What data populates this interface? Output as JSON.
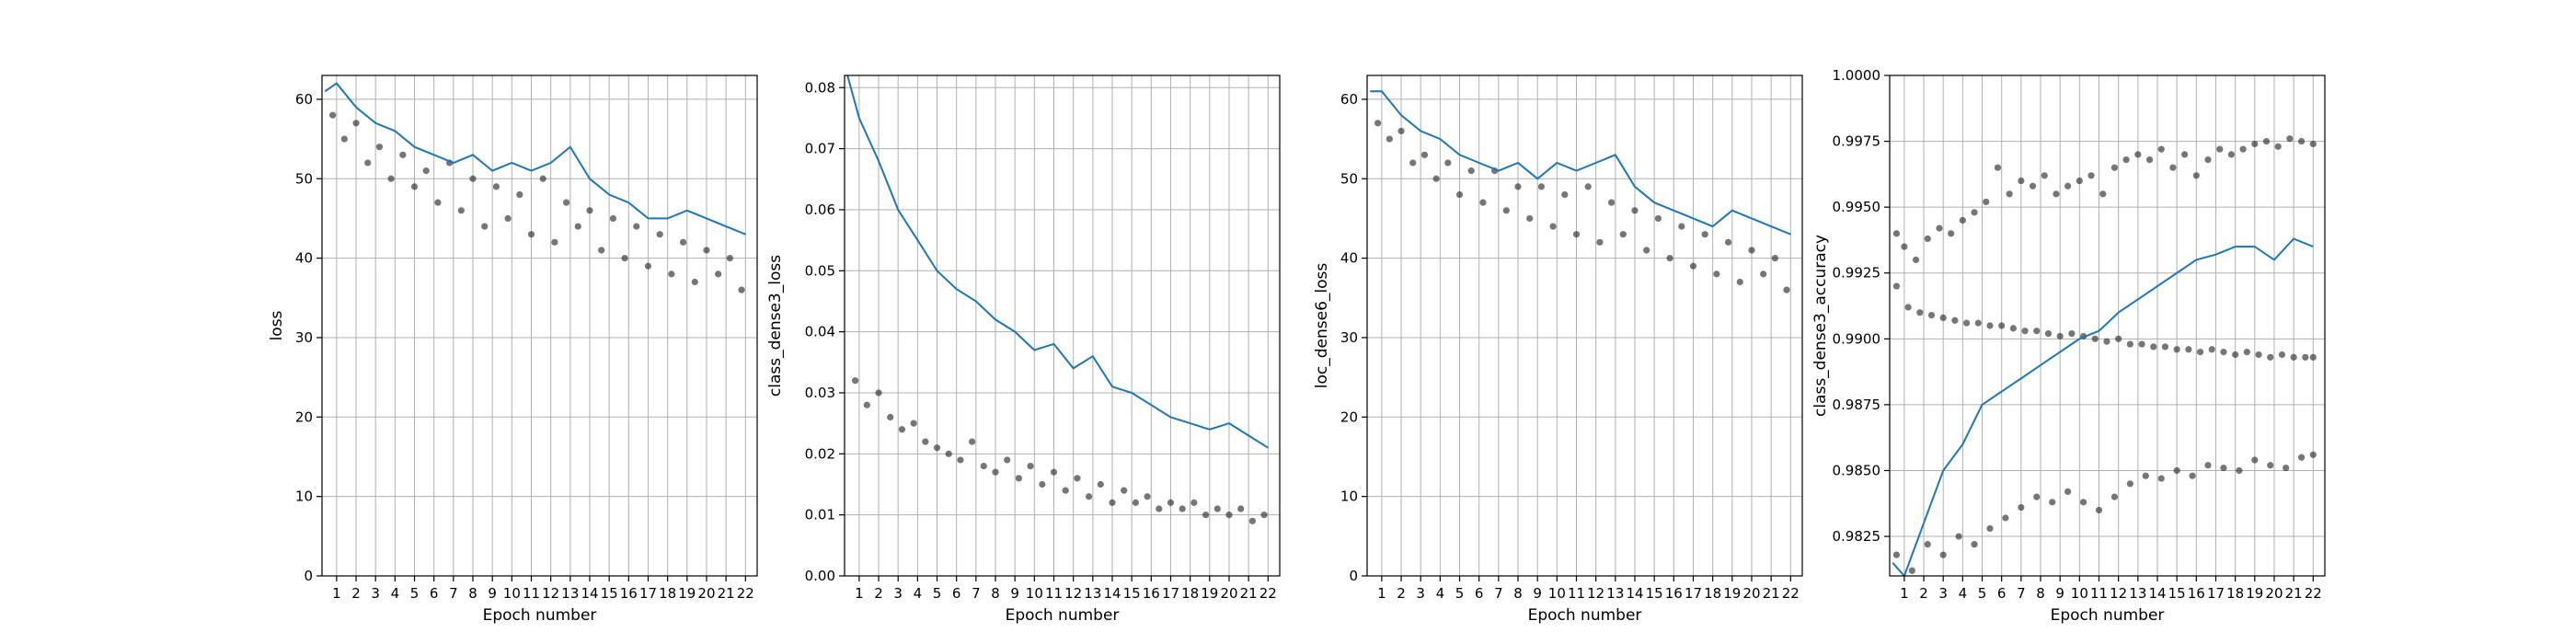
{
  "figure": {
    "x_tick_labels": [
      "1",
      "2",
      "3",
      "4",
      "5",
      "6",
      "7",
      "8",
      "9",
      "10",
      "11",
      "12",
      "13",
      "14",
      "15",
      "16",
      "17",
      "18",
      "19",
      "20",
      "21",
      "22"
    ]
  },
  "colors": {
    "line": "#1f77b4",
    "points": "#222222",
    "grid": "#b0b0b0"
  },
  "chart_data": [
    {
      "type": "scatter",
      "title": "",
      "xlabel": "Epoch number",
      "ylabel": "loss",
      "xlim": [
        0.25,
        22.6
      ],
      "ylim": [
        0,
        63
      ],
      "y_ticks": [
        "0",
        "10",
        "20",
        "30",
        "40",
        "50",
        "60"
      ],
      "grid": true,
      "series": [
        {
          "kind": "points",
          "x": [
            0.8,
            1.4,
            2.0,
            2.6,
            3.2,
            3.8,
            4.4,
            5.0,
            5.6,
            6.2,
            6.8,
            7.4,
            8.0,
            8.6,
            9.2,
            9.8,
            10.4,
            11.0,
            11.6,
            12.2,
            12.8,
            13.4,
            14.0,
            14.6,
            15.2,
            15.8,
            16.4,
            17.0,
            17.6,
            18.2,
            18.8,
            19.4,
            20.0,
            20.6,
            21.2,
            21.8
          ],
          "y": [
            58,
            55,
            57,
            52,
            54,
            50,
            53,
            49,
            51,
            47,
            52,
            46,
            50,
            44,
            49,
            45,
            48,
            43,
            50,
            42,
            47,
            44,
            46,
            41,
            45,
            40,
            44,
            39,
            43,
            38,
            42,
            37,
            41,
            38,
            40,
            36
          ]
        },
        {
          "kind": "line",
          "x": [
            0.4,
            1,
            2,
            3,
            4,
            5,
            6,
            7,
            8,
            9,
            10,
            11,
            12,
            13,
            14,
            15,
            16,
            17,
            18,
            19,
            20,
            21,
            22
          ],
          "y": [
            61,
            62,
            59,
            57,
            56,
            54,
            53,
            52,
            53,
            51,
            52,
            51,
            52,
            54,
            50,
            48,
            47,
            45,
            45,
            46,
            45,
            44,
            43
          ]
        }
      ]
    },
    {
      "type": "scatter",
      "title": "",
      "xlabel": "Epoch number",
      "ylabel": "class_dense3_loss",
      "xlim": [
        0.25,
        22.6
      ],
      "ylim": [
        0,
        0.082
      ],
      "y_ticks": [
        "0.00",
        "0.01",
        "0.02",
        "0.03",
        "0.04",
        "0.05",
        "0.06",
        "0.07",
        "0.08"
      ],
      "grid": true,
      "series": [
        {
          "kind": "points",
          "x": [
            0.8,
            1.4,
            2.0,
            2.6,
            3.2,
            3.8,
            4.4,
            5.0,
            5.6,
            6.2,
            6.8,
            7.4,
            8.0,
            8.6,
            9.2,
            9.8,
            10.4,
            11.0,
            11.6,
            12.2,
            12.8,
            13.4,
            14.0,
            14.6,
            15.2,
            15.8,
            16.4,
            17.0,
            17.6,
            18.2,
            18.8,
            19.4,
            20.0,
            20.6,
            21.2,
            21.8
          ],
          "y": [
            0.032,
            0.028,
            0.03,
            0.026,
            0.024,
            0.025,
            0.022,
            0.021,
            0.02,
            0.019,
            0.022,
            0.018,
            0.017,
            0.019,
            0.016,
            0.018,
            0.015,
            0.017,
            0.014,
            0.016,
            0.013,
            0.015,
            0.012,
            0.014,
            0.012,
            0.013,
            0.011,
            0.012,
            0.011,
            0.012,
            0.01,
            0.011,
            0.01,
            0.011,
            0.009,
            0.01
          ]
        },
        {
          "kind": "line",
          "x": [
            0.4,
            1,
            2,
            3,
            4,
            5,
            6,
            7,
            8,
            9,
            10,
            11,
            12,
            13,
            14,
            15,
            16,
            17,
            18,
            19,
            20,
            21,
            22
          ],
          "y": [
            0.082,
            0.075,
            0.068,
            0.06,
            0.055,
            0.05,
            0.047,
            0.045,
            0.042,
            0.04,
            0.037,
            0.038,
            0.034,
            0.036,
            0.031,
            0.03,
            0.028,
            0.026,
            0.025,
            0.024,
            0.025,
            0.023,
            0.021
          ]
        }
      ]
    },
    {
      "type": "scatter",
      "title": "",
      "xlabel": "Epoch number",
      "ylabel": "loc_dense6_loss",
      "xlim": [
        0.25,
        22.6
      ],
      "ylim": [
        0,
        63
      ],
      "y_ticks": [
        "0",
        "10",
        "20",
        "30",
        "40",
        "50",
        "60"
      ],
      "grid": true,
      "series": [
        {
          "kind": "points",
          "x": [
            0.8,
            1.4,
            2.0,
            2.6,
            3.2,
            3.8,
            4.4,
            5.0,
            5.6,
            6.2,
            6.8,
            7.4,
            8.0,
            8.6,
            9.2,
            9.8,
            10.4,
            11.0,
            11.6,
            12.2,
            12.8,
            13.4,
            14.0,
            14.6,
            15.2,
            15.8,
            16.4,
            17.0,
            17.6,
            18.2,
            18.8,
            19.4,
            20.0,
            20.6,
            21.2,
            21.8
          ],
          "y": [
            57,
            55,
            56,
            52,
            53,
            50,
            52,
            48,
            51,
            47,
            51,
            46,
            49,
            45,
            49,
            44,
            48,
            43,
            49,
            42,
            47,
            43,
            46,
            41,
            45,
            40,
            44,
            39,
            43,
            38,
            42,
            37,
            41,
            38,
            40,
            36
          ]
        },
        {
          "kind": "line",
          "x": [
            0.4,
            1,
            2,
            3,
            4,
            5,
            6,
            7,
            8,
            9,
            10,
            11,
            12,
            13,
            14,
            15,
            16,
            17,
            18,
            19,
            20,
            21,
            22
          ],
          "y": [
            61,
            61,
            58,
            56,
            55,
            53,
            52,
            51,
            52,
            50,
            52,
            51,
            52,
            53,
            49,
            47,
            46,
            45,
            44,
            46,
            45,
            44,
            43
          ]
        }
      ]
    },
    {
      "type": "scatter",
      "title": "",
      "xlabel": "Epoch number",
      "ylabel": "class_dense3_accuracy",
      "xlim": [
        0.25,
        22.6
      ],
      "ylim": [
        0.981,
        1.0
      ],
      "y_ticks": [
        "0.9825",
        "0.9850",
        "0.9875",
        "0.9900",
        "0.9925",
        "0.9950",
        "0.9975",
        "1.0000"
      ],
      "y_tick_values": [
        0.9825,
        0.985,
        0.9875,
        0.99,
        0.9925,
        0.995,
        0.9975,
        1.0
      ],
      "grid": true,
      "series": [
        {
          "kind": "points",
          "x": [
            0.6,
            1.0,
            1.6,
            2.2,
            2.8,
            3.4,
            4.0,
            4.6,
            5.2,
            5.8,
            6.4,
            7.0,
            7.6,
            8.2,
            8.8,
            9.4,
            10.0,
            10.6,
            11.2,
            11.8,
            12.4,
            13.0,
            13.6,
            14.2,
            14.8,
            15.4,
            16.0,
            16.6,
            17.2,
            17.8,
            18.4,
            19.0,
            19.6,
            20.2,
            20.8,
            21.4,
            22.0
          ],
          "y": [
            0.994,
            0.9935,
            0.993,
            0.9938,
            0.9942,
            0.994,
            0.9945,
            0.9948,
            0.9952,
            0.9965,
            0.9955,
            0.996,
            0.9958,
            0.9962,
            0.9955,
            0.9958,
            0.996,
            0.9962,
            0.9955,
            0.9965,
            0.9968,
            0.997,
            0.9968,
            0.9972,
            0.9965,
            0.997,
            0.9962,
            0.9968,
            0.9972,
            0.997,
            0.9972,
            0.9974,
            0.9975,
            0.9973,
            0.9976,
            0.9975,
            0.9974
          ]
        },
        {
          "kind": "points",
          "x": [
            0.6,
            1.2,
            1.8,
            2.4,
            3.0,
            3.6,
            4.2,
            4.8,
            5.4,
            6.0,
            6.6,
            7.2,
            7.8,
            8.4,
            9.0,
            9.6,
            10.2,
            10.8,
            11.4,
            12.0,
            12.6,
            13.2,
            13.8,
            14.4,
            15.0,
            15.6,
            16.2,
            16.8,
            17.4,
            18.0,
            18.6,
            19.2,
            19.8,
            20.4,
            21.0,
            21.6,
            22.0
          ],
          "y": [
            0.992,
            0.9912,
            0.991,
            0.9909,
            0.9908,
            0.9907,
            0.9906,
            0.9906,
            0.9905,
            0.9905,
            0.9904,
            0.9903,
            0.9903,
            0.9902,
            0.9901,
            0.9902,
            0.9901,
            0.99,
            0.9899,
            0.99,
            0.9898,
            0.9898,
            0.9897,
            0.9897,
            0.9896,
            0.9896,
            0.9895,
            0.9896,
            0.9895,
            0.9894,
            0.9895,
            0.9894,
            0.9893,
            0.9894,
            0.9893,
            0.9893,
            0.9893
          ]
        },
        {
          "kind": "points",
          "x": [
            0.6,
            1.4,
            2.2,
            3.0,
            3.8,
            4.6,
            5.4,
            6.2,
            7.0,
            7.8,
            8.6,
            9.4,
            10.2,
            11.0,
            11.8,
            12.6,
            13.4,
            14.2,
            15.0,
            15.8,
            16.6,
            17.4,
            18.2,
            19.0,
            19.8,
            20.6,
            21.4,
            22.0
          ],
          "y": [
            0.9818,
            0.9812,
            0.9822,
            0.9818,
            0.9825,
            0.9822,
            0.9828,
            0.9832,
            0.9836,
            0.984,
            0.9838,
            0.9842,
            0.9838,
            0.9835,
            0.984,
            0.9845,
            0.9848,
            0.9847,
            0.985,
            0.9848,
            0.9852,
            0.9851,
            0.985,
            0.9854,
            0.9852,
            0.9851,
            0.9855,
            0.9856
          ]
        },
        {
          "kind": "line",
          "x": [
            0.4,
            1,
            2,
            3,
            4,
            5,
            6,
            7,
            8,
            9,
            10,
            11,
            12,
            13,
            14,
            15,
            16,
            17,
            18,
            19,
            20,
            21,
            22
          ],
          "y": [
            0.9815,
            0.981,
            0.983,
            0.985,
            0.986,
            0.9875,
            0.988,
            0.9885,
            0.989,
            0.9895,
            0.99,
            0.9903,
            0.991,
            0.9915,
            0.992,
            0.9925,
            0.993,
            0.9932,
            0.9935,
            0.9935,
            0.993,
            0.9938,
            0.9935
          ]
        }
      ]
    }
  ]
}
